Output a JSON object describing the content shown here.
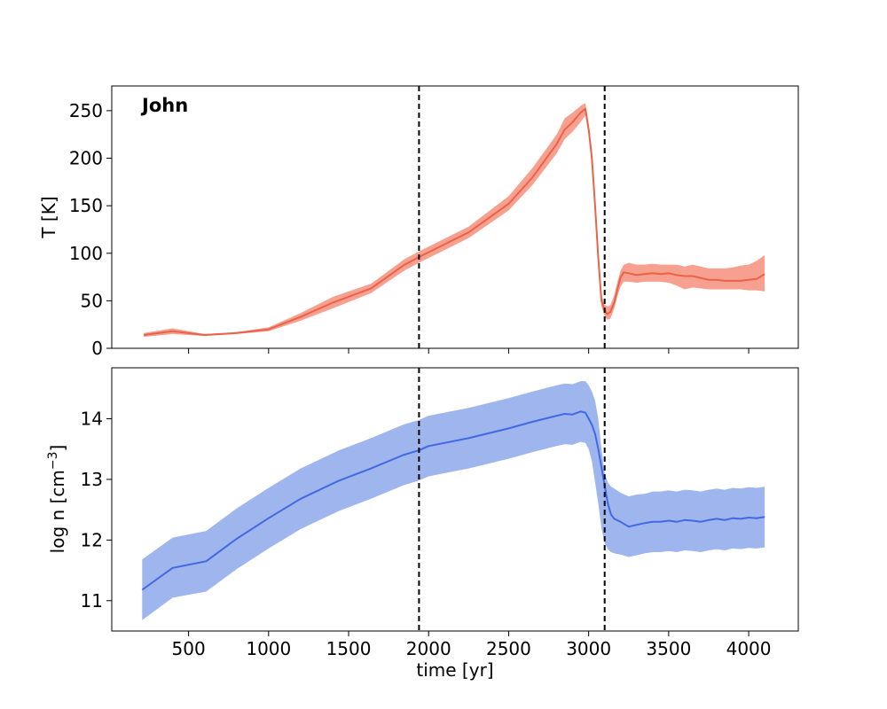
{
  "figure": {
    "panel_tag": "John",
    "xlabel": "time [yr]",
    "top_ylabel": "T [K]",
    "bottom_ylabel_main": "log n [cm",
    "bottom_ylabel_sup": "−3",
    "bottom_ylabel_end": "]"
  },
  "chart_data": [
    {
      "type": "line",
      "panel": "top",
      "ylabel": "T [K]",
      "xlim": [
        20,
        4310
      ],
      "ylim": [
        0,
        276
      ],
      "xticks": [
        500,
        1000,
        1500,
        2000,
        2500,
        3000,
        3500,
        4000
      ],
      "yticks": [
        0,
        50,
        100,
        150,
        200,
        250
      ],
      "show_xtick_labels": false,
      "color": "#e8634a",
      "band_color": "#f7a08f",
      "vlines": [
        1940,
        3100
      ],
      "series": [
        {
          "x": [
            220,
            400,
            600,
            800,
            1000,
            1200,
            1400,
            1640,
            1850,
            1940,
            2250,
            2500,
            2650,
            2800,
            2850,
            2900,
            2950,
            2980,
            3000,
            3020,
            3040,
            3060,
            3080,
            3100,
            3115,
            3135,
            3160,
            3180,
            3200,
            3220,
            3250,
            3300,
            3350,
            3400,
            3450,
            3500,
            3550,
            3600,
            3650,
            3700,
            3750,
            3800,
            3850,
            3900,
            3950,
            4000,
            4050,
            4100
          ],
          "y": [
            14,
            18,
            14,
            16,
            20,
            33,
            48,
            63,
            88,
            96,
            122,
            152,
            180,
            215,
            230,
            238,
            248,
            252,
            230,
            200,
            150,
            95,
            50,
            40,
            36,
            38,
            48,
            62,
            75,
            80,
            79,
            77,
            78,
            79,
            78,
            79,
            77,
            76,
            76,
            74,
            72,
            72,
            71,
            71,
            71,
            72,
            73,
            78
          ],
          "lower": [
            12,
            15,
            13,
            15,
            18,
            29,
            42,
            58,
            82,
            90,
            116,
            145,
            172,
            205,
            220,
            228,
            238,
            245,
            225,
            190,
            140,
            85,
            44,
            34,
            30,
            31,
            42,
            55,
            65,
            70,
            70,
            69,
            70,
            70,
            70,
            69,
            66,
            62,
            64,
            63,
            62,
            62,
            62,
            62,
            62,
            61,
            61,
            60
          ],
          "upper": [
            16,
            21,
            15,
            17,
            22,
            37,
            54,
            68,
            94,
            102,
            128,
            160,
            190,
            225,
            242,
            248,
            255,
            258,
            235,
            210,
            160,
            105,
            56,
            46,
            44,
            45,
            56,
            70,
            82,
            88,
            90,
            88,
            88,
            89,
            88,
            88,
            88,
            86,
            88,
            86,
            84,
            84,
            84,
            85,
            87,
            88,
            92,
            98
          ]
        }
      ]
    },
    {
      "type": "line",
      "panel": "bottom",
      "xlabel": "time [yr]",
      "ylabel": "log n [cm−3]",
      "xlim": [
        20,
        4310
      ],
      "ylim": [
        10.5,
        14.84
      ],
      "xticks": [
        500,
        1000,
        1500,
        2000,
        2500,
        3000,
        3500,
        4000
      ],
      "yticks": [
        11,
        12,
        13,
        14
      ],
      "color": "#4169e1",
      "band_color": "#9fb5ee",
      "vlines": [
        1940,
        3100
      ],
      "series": [
        {
          "x": [
            210,
            400,
            610,
            800,
            1000,
            1200,
            1440,
            1640,
            1840,
            1940,
            2000,
            2250,
            2500,
            2650,
            2800,
            2850,
            2900,
            2950,
            2980,
            3000,
            3020,
            3040,
            3060,
            3080,
            3100,
            3120,
            3140,
            3160,
            3200,
            3250,
            3300,
            3350,
            3400,
            3450,
            3500,
            3550,
            3600,
            3650,
            3700,
            3750,
            3800,
            3850,
            3900,
            3950,
            4000,
            4050,
            4100
          ],
          "y": [
            11.18,
            11.54,
            11.65,
            12.02,
            12.36,
            12.68,
            12.98,
            13.18,
            13.4,
            13.48,
            13.55,
            13.68,
            13.84,
            13.95,
            14.05,
            14.08,
            14.07,
            14.12,
            14.1,
            14.0,
            13.9,
            13.75,
            13.5,
            13.2,
            12.9,
            12.6,
            12.42,
            12.35,
            12.3,
            12.22,
            12.25,
            12.28,
            12.3,
            12.3,
            12.32,
            12.3,
            12.33,
            12.32,
            12.3,
            12.33,
            12.35,
            12.33,
            12.36,
            12.35,
            12.37,
            12.36,
            12.38
          ],
          "lower": [
            10.68,
            11.05,
            11.15,
            11.52,
            11.86,
            12.18,
            12.48,
            12.68,
            12.9,
            12.98,
            13.05,
            13.18,
            13.34,
            13.45,
            13.55,
            13.58,
            13.57,
            13.62,
            13.6,
            13.5,
            13.3,
            12.95,
            12.6,
            12.2,
            11.95,
            11.85,
            11.8,
            11.78,
            11.76,
            11.72,
            11.75,
            11.78,
            11.8,
            11.8,
            11.82,
            11.8,
            11.83,
            11.82,
            11.8,
            11.83,
            11.85,
            11.83,
            11.86,
            11.85,
            11.87,
            11.86,
            11.88
          ],
          "upper": [
            11.68,
            12.04,
            12.15,
            12.52,
            12.86,
            13.18,
            13.48,
            13.68,
            13.9,
            13.98,
            14.05,
            14.18,
            14.34,
            14.45,
            14.55,
            14.58,
            14.57,
            14.62,
            14.62,
            14.55,
            14.45,
            14.3,
            14.0,
            13.5,
            13.1,
            12.95,
            12.88,
            12.85,
            12.78,
            12.72,
            12.75,
            12.76,
            12.8,
            12.8,
            12.82,
            12.8,
            12.83,
            12.82,
            12.8,
            12.83,
            12.85,
            12.83,
            12.86,
            12.85,
            12.87,
            12.86,
            12.88
          ]
        }
      ]
    }
  ]
}
